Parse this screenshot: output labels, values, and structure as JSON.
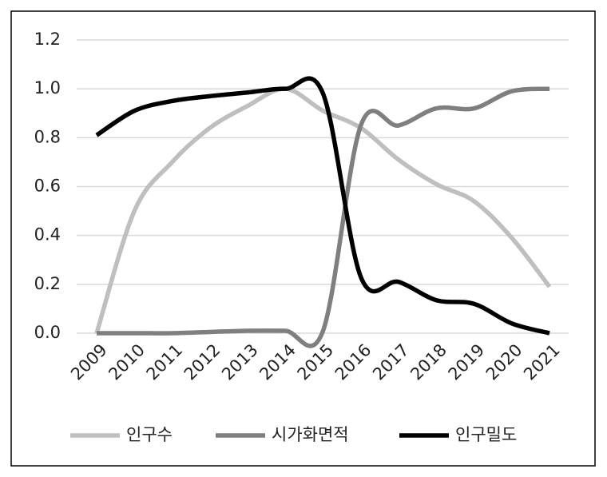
{
  "chart_data": {
    "type": "line",
    "categories": [
      "2009",
      "2010",
      "2011",
      "2012",
      "2013",
      "2014",
      "2015",
      "2016",
      "2017",
      "2018",
      "2019",
      "2020",
      "2021"
    ],
    "series": [
      {
        "name": "인구수",
        "color": "#bfbfbf",
        "values": [
          0,
          0.5,
          0.7,
          0.84,
          0.93,
          1.0,
          0.91,
          0.84,
          0.71,
          0.61,
          0.54,
          0.39,
          0.19
        ]
      },
      {
        "name": "시가화면적",
        "color": "#7f7f7f",
        "values": [
          0,
          0,
          0,
          0.005,
          0.01,
          0.01,
          0.01,
          0.85,
          0.85,
          0.92,
          0.92,
          0.99,
          1.0
        ]
      },
      {
        "name": "인구밀도",
        "color": "#000000",
        "values": [
          0.81,
          0.91,
          0.95,
          0.97,
          0.985,
          1.0,
          0.98,
          0.23,
          0.21,
          0.135,
          0.12,
          0.04,
          0.0
        ]
      }
    ],
    "ylim": [
      0,
      1.2
    ],
    "yticks": [
      {
        "value": 0,
        "label": "0.0"
      },
      0.2,
      0.4,
      0.6,
      0.8,
      {
        "value": 1,
        "label": "1.0"
      },
      1.2
    ],
    "grid": true,
    "legend": "bottom"
  }
}
